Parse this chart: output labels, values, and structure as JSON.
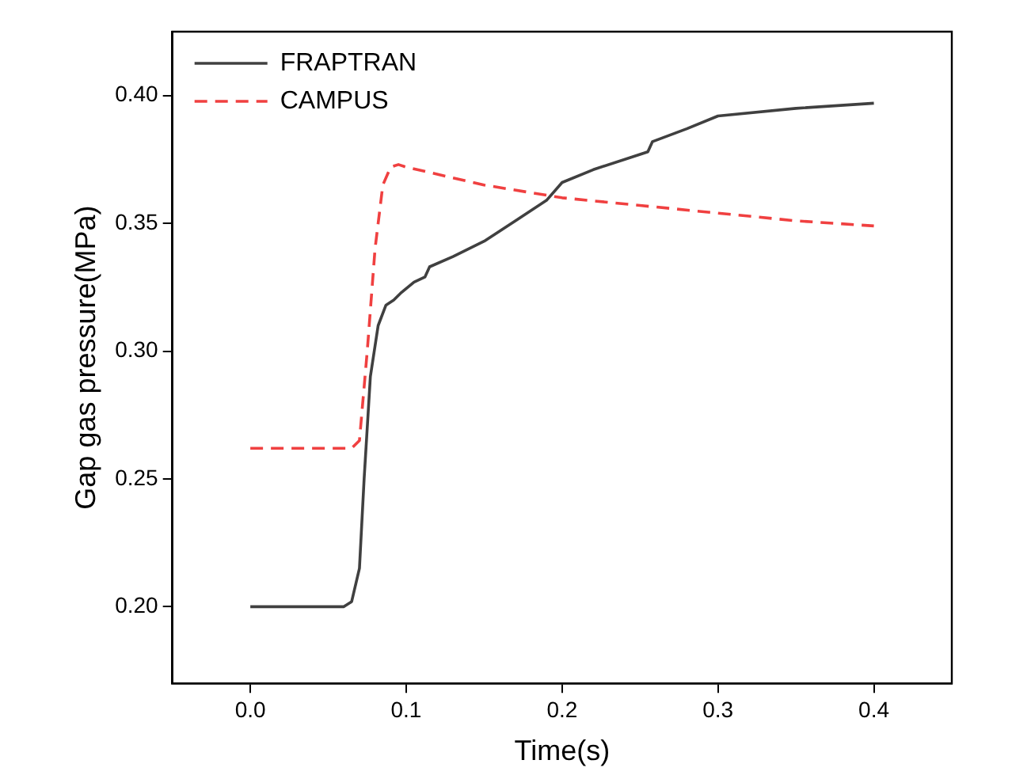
{
  "chart_data": {
    "type": "line",
    "xlabel": "Time(s)",
    "ylabel": "Gap gas pressure(MPa)",
    "xlim": [
      -0.05,
      0.45
    ],
    "xticks": [
      {
        "value": 0,
        "label": "0.0"
      },
      0.1,
      0.2,
      0.3,
      0.4
    ],
    "ylim": [
      0.17,
      0.425
    ],
    "yticks": [
      {
        "value": 0.2,
        "label": "0.20"
      },
      0.25,
      {
        "value": 0.3,
        "label": "0.30"
      },
      0.35,
      {
        "value": 0.4,
        "label": "0.40"
      }
    ],
    "grid": false,
    "legend": "top left",
    "marker": "none",
    "series": [
      {
        "name": "FRAPTRAN",
        "color": "#404040",
        "line_style": "solid",
        "x": [
          0,
          0.06,
          0.065,
          0.07,
          0.073,
          0.077,
          0.082,
          0.087,
          0.092,
          0.097,
          0.105,
          0.112,
          0.115,
          0.13,
          0.15,
          0.17,
          0.19,
          0.2,
          0.22,
          0.25,
          0.255,
          0.258,
          0.28,
          0.3,
          0.35,
          0.4
        ],
        "values": [
          0.2,
          0.2,
          0.202,
          0.215,
          0.25,
          0.29,
          0.31,
          0.318,
          0.32,
          0.323,
          0.327,
          0.329,
          0.333,
          0.337,
          0.343,
          0.351,
          0.359,
          0.366,
          0.371,
          0.377,
          0.378,
          0.382,
          0.387,
          0.392,
          0.395,
          0.397
        ]
      },
      {
        "name": "CAMPUS",
        "color": "#f04040",
        "line_style": "dashed",
        "x": [
          0,
          0.065,
          0.07,
          0.075,
          0.08,
          0.085,
          0.09,
          0.095,
          0.1,
          0.15,
          0.2,
          0.25,
          0.3,
          0.35,
          0.4
        ],
        "values": [
          0.262,
          0.262,
          0.265,
          0.3,
          0.34,
          0.365,
          0.372,
          0.373,
          0.372,
          0.365,
          0.36,
          0.357,
          0.354,
          0.351,
          0.349
        ]
      }
    ]
  }
}
